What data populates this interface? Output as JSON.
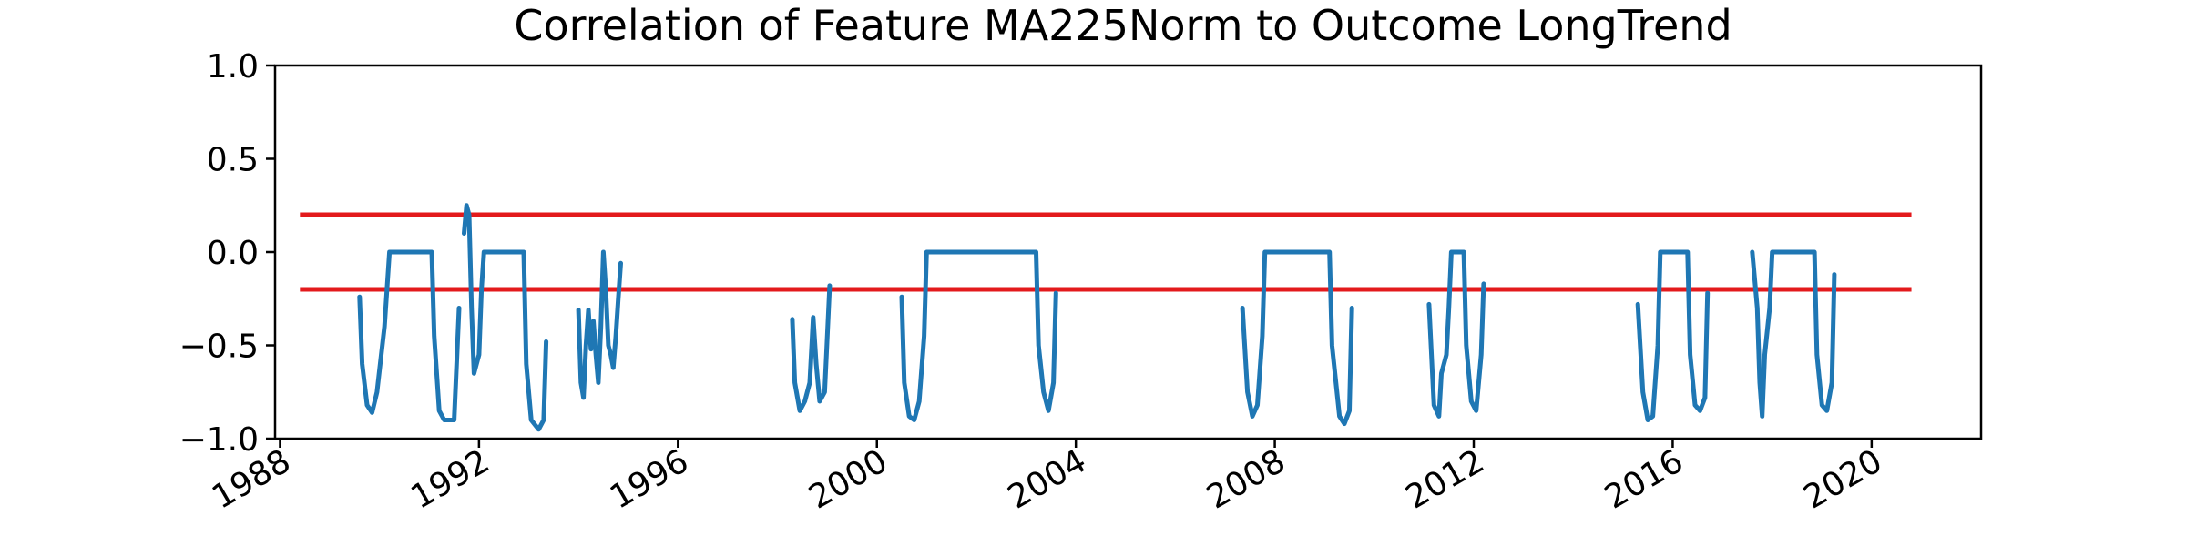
{
  "chart_data": {
    "type": "line",
    "title": "Correlation of Feature MA225Norm to Outcome LongTrend",
    "xlabel": "",
    "ylabel": "",
    "xlim": [
      1987.9,
      2022.2
    ],
    "ylim": [
      -1.0,
      1.0
    ],
    "x_ticks": [
      1988,
      1992,
      1996,
      2000,
      2004,
      2008,
      2012,
      2016,
      2020
    ],
    "x_tick_labels": [
      "1988",
      "1992",
      "1996",
      "2000",
      "2004",
      "2008",
      "2012",
      "2016",
      "2020"
    ],
    "y_ticks": [
      1.0,
      0.5,
      0.0,
      -0.5,
      -1.0
    ],
    "y_tick_labels": [
      "1.0",
      "0.5",
      "0.0",
      "−0.5",
      "−1.0"
    ],
    "grid": false,
    "threshold_lines": [
      {
        "y": 0.2,
        "x": [
          1988.4,
          2020.8
        ],
        "color": "#e31a1c"
      },
      {
        "y": -0.2,
        "x": [
          1988.4,
          2020.8
        ],
        "color": "#e31a1c"
      }
    ],
    "series": [
      {
        "color": "#1f77b4",
        "segments": [
          [
            [
              1989.6,
              -0.24
            ],
            [
              1989.65,
              -0.6
            ],
            [
              1989.75,
              -0.82
            ],
            [
              1989.85,
              -0.86
            ],
            [
              1989.95,
              -0.75
            ],
            [
              1990.1,
              -0.4
            ],
            [
              1990.2,
              0.0
            ],
            [
              1991.05,
              0.0
            ],
            [
              1991.1,
              -0.45
            ],
            [
              1991.2,
              -0.85
            ],
            [
              1991.3,
              -0.9
            ],
            [
              1991.5,
              -0.9
            ],
            [
              1991.6,
              -0.3
            ]
          ],
          [
            [
              1991.7,
              0.1
            ],
            [
              1991.75,
              0.25
            ],
            [
              1991.8,
              0.2
            ],
            [
              1991.85,
              -0.3
            ],
            [
              1991.9,
              -0.65
            ],
            [
              1992.0,
              -0.55
            ],
            [
              1992.05,
              -0.2
            ],
            [
              1992.1,
              0.0
            ],
            [
              1992.9,
              0.0
            ],
            [
              1992.95,
              -0.6
            ],
            [
              1993.05,
              -0.9
            ],
            [
              1993.2,
              -0.95
            ],
            [
              1993.3,
              -0.9
            ],
            [
              1993.35,
              -0.48
            ]
          ],
          [
            [
              1994.0,
              -0.31
            ],
            [
              1994.05,
              -0.7
            ],
            [
              1994.1,
              -0.78
            ],
            [
              1994.15,
              -0.5
            ],
            [
              1994.2,
              -0.31
            ],
            [
              1994.25,
              -0.52
            ],
            [
              1994.3,
              -0.37
            ],
            [
              1994.35,
              -0.55
            ],
            [
              1994.4,
              -0.7
            ],
            [
              1994.45,
              -0.4
            ],
            [
              1994.5,
              0.0
            ],
            [
              1994.55,
              -0.2
            ],
            [
              1994.6,
              -0.5
            ],
            [
              1994.65,
              -0.55
            ],
            [
              1994.7,
              -0.62
            ],
            [
              1994.75,
              -0.45
            ],
            [
              1994.8,
              -0.25
            ],
            [
              1994.85,
              -0.06
            ]
          ],
          [
            [
              1998.3,
              -0.36
            ],
            [
              1998.35,
              -0.7
            ],
            [
              1998.45,
              -0.85
            ],
            [
              1998.55,
              -0.8
            ],
            [
              1998.65,
              -0.7
            ],
            [
              1998.72,
              -0.35
            ],
            [
              1998.78,
              -0.6
            ],
            [
              1998.85,
              -0.8
            ],
            [
              1998.95,
              -0.75
            ],
            [
              1999.05,
              -0.18
            ]
          ],
          [
            [
              2000.5,
              -0.24
            ],
            [
              2000.55,
              -0.7
            ],
            [
              2000.65,
              -0.88
            ],
            [
              2000.75,
              -0.9
            ],
            [
              2000.85,
              -0.8
            ],
            [
              2000.95,
              -0.45
            ],
            [
              2001.0,
              0.0
            ],
            [
              2003.2,
              0.0
            ],
            [
              2003.25,
              -0.5
            ],
            [
              2003.35,
              -0.75
            ],
            [
              2003.45,
              -0.85
            ],
            [
              2003.55,
              -0.7
            ],
            [
              2003.6,
              -0.22
            ]
          ],
          [
            [
              2007.35,
              -0.3
            ],
            [
              2007.45,
              -0.75
            ],
            [
              2007.55,
              -0.88
            ],
            [
              2007.65,
              -0.82
            ],
            [
              2007.75,
              -0.45
            ],
            [
              2007.8,
              0.0
            ],
            [
              2009.1,
              0.0
            ],
            [
              2009.15,
              -0.5
            ],
            [
              2009.3,
              -0.88
            ],
            [
              2009.4,
              -0.92
            ],
            [
              2009.5,
              -0.85
            ],
            [
              2009.55,
              -0.3
            ]
          ],
          [
            [
              2011.1,
              -0.28
            ],
            [
              2011.2,
              -0.82
            ],
            [
              2011.3,
              -0.88
            ],
            [
              2011.35,
              -0.65
            ],
            [
              2011.45,
              -0.55
            ],
            [
              2011.5,
              -0.3
            ],
            [
              2011.55,
              0.0
            ],
            [
              2011.8,
              0.0
            ],
            [
              2011.85,
              -0.5
            ],
            [
              2011.95,
              -0.8
            ],
            [
              2012.05,
              -0.85
            ],
            [
              2012.15,
              -0.55
            ],
            [
              2012.2,
              -0.17
            ]
          ],
          [
            [
              2015.3,
              -0.28
            ],
            [
              2015.4,
              -0.75
            ],
            [
              2015.5,
              -0.9
            ],
            [
              2015.6,
              -0.88
            ],
            [
              2015.7,
              -0.5
            ],
            [
              2015.75,
              0.0
            ],
            [
              2016.3,
              0.0
            ],
            [
              2016.35,
              -0.55
            ],
            [
              2016.45,
              -0.82
            ],
            [
              2016.55,
              -0.85
            ],
            [
              2016.65,
              -0.78
            ],
            [
              2016.7,
              -0.22
            ]
          ],
          [
            [
              2017.6,
              0.0
            ],
            [
              2017.7,
              -0.3
            ],
            [
              2017.75,
              -0.7
            ],
            [
              2017.8,
              -0.88
            ],
            [
              2017.85,
              -0.55
            ],
            [
              2017.95,
              -0.3
            ],
            [
              2018.0,
              0.0
            ],
            [
              2018.85,
              0.0
            ],
            [
              2018.9,
              -0.55
            ],
            [
              2019.0,
              -0.82
            ],
            [
              2019.1,
              -0.85
            ],
            [
              2019.2,
              -0.7
            ],
            [
              2019.25,
              -0.12
            ]
          ]
        ]
      }
    ]
  }
}
